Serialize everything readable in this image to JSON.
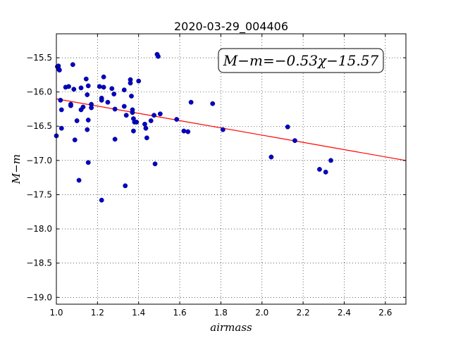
{
  "chart_data": {
    "type": "scatter",
    "title": "2020-03-29_004406",
    "xlabel": "airmass",
    "ylabel": "M−m",
    "xlim": [
      1.0,
      2.7
    ],
    "ylim": [
      -19.1,
      -15.15
    ],
    "y_inverted": false,
    "grid": true,
    "xticks": [
      1.0,
      1.2,
      1.4,
      1.6,
      1.8,
      2.0,
      2.2,
      2.4,
      2.6
    ],
    "xtick_labels": [
      "1.0",
      "1.2",
      "1.4",
      "1.6",
      "1.8",
      "2.0",
      "2.2",
      "2.4",
      "2.6"
    ],
    "yticks": [
      -15.5,
      -16.0,
      -16.5,
      -17.0,
      -17.5,
      -18.0,
      -18.5,
      -19.0
    ],
    "ytick_labels": [
      "−15.5",
      "−16.0",
      "−16.5",
      "−17.0",
      "−17.5",
      "−18.0",
      "−18.5",
      "−19.0"
    ],
    "annotation": "M−m=−0.53χ−15.57",
    "annotation_position": "top-right",
    "fit": {
      "slope": -0.53,
      "intercept": -15.57,
      "color": "#ff0000"
    },
    "marker_color": "#0000cc",
    "series": [
      {
        "points": [
          [
            1.0,
            -16.64
          ],
          [
            1.005,
            -15.63
          ],
          [
            1.01,
            -15.62
          ],
          [
            1.012,
            -15.67
          ],
          [
            1.015,
            -15.68
          ],
          [
            1.02,
            -16.12
          ],
          [
            1.025,
            -16.26
          ],
          [
            1.025,
            -16.53
          ],
          [
            1.045,
            -15.93
          ],
          [
            1.06,
            -15.92
          ],
          [
            1.07,
            -16.2
          ],
          [
            1.07,
            -16.18
          ],
          [
            1.08,
            -15.6
          ],
          [
            1.085,
            -15.96
          ],
          [
            1.09,
            -16.7
          ],
          [
            1.1,
            -16.42
          ],
          [
            1.11,
            -17.29
          ],
          [
            1.12,
            -15.94
          ],
          [
            1.12,
            -16.26
          ],
          [
            1.13,
            -16.22
          ],
          [
            1.145,
            -15.81
          ],
          [
            1.15,
            -16.04
          ],
          [
            1.15,
            -16.55
          ],
          [
            1.155,
            -15.91
          ],
          [
            1.155,
            -16.41
          ],
          [
            1.155,
            -17.03
          ],
          [
            1.17,
            -16.18
          ],
          [
            1.17,
            -16.23
          ],
          [
            1.21,
            -15.92
          ],
          [
            1.22,
            -16.09
          ],
          [
            1.22,
            -16.12
          ],
          [
            1.22,
            -17.58
          ],
          [
            1.23,
            -15.78
          ],
          [
            1.23,
            -15.93
          ],
          [
            1.25,
            -16.15
          ],
          [
            1.27,
            -15.95
          ],
          [
            1.28,
            -16.03
          ],
          [
            1.285,
            -16.25
          ],
          [
            1.285,
            -16.69
          ],
          [
            1.33,
            -16.21
          ],
          [
            1.33,
            -15.97
          ],
          [
            1.335,
            -17.37
          ],
          [
            1.34,
            -16.34
          ],
          [
            1.36,
            -15.82
          ],
          [
            1.36,
            -15.87
          ],
          [
            1.365,
            -16.06
          ],
          [
            1.37,
            -16.26
          ],
          [
            1.37,
            -16.3
          ],
          [
            1.375,
            -16.39
          ],
          [
            1.375,
            -16.57
          ],
          [
            1.38,
            -16.44
          ],
          [
            1.39,
            -16.44
          ],
          [
            1.4,
            -15.84
          ],
          [
            1.43,
            -16.47
          ],
          [
            1.435,
            -16.53
          ],
          [
            1.44,
            -16.67
          ],
          [
            1.46,
            -16.42
          ],
          [
            1.475,
            -16.34
          ],
          [
            1.48,
            -17.05
          ],
          [
            1.49,
            -15.45
          ],
          [
            1.495,
            -15.48
          ],
          [
            1.505,
            -16.32
          ],
          [
            1.585,
            -16.4
          ],
          [
            1.62,
            -16.57
          ],
          [
            1.64,
            -16.58
          ],
          [
            1.655,
            -16.15
          ],
          [
            1.76,
            -16.17
          ],
          [
            1.81,
            -16.55
          ],
          [
            2.045,
            -16.95
          ],
          [
            2.125,
            -16.51
          ],
          [
            2.16,
            -16.71
          ],
          [
            2.28,
            -17.13
          ],
          [
            2.31,
            -17.17
          ],
          [
            2.335,
            -17.0
          ]
        ]
      }
    ]
  }
}
